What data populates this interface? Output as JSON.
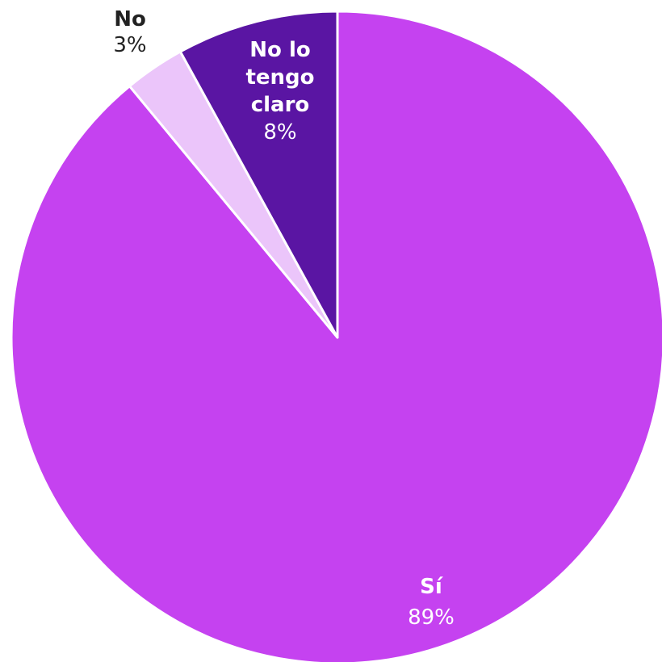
{
  "chart_data": {
    "type": "pie",
    "title": "",
    "slices": [
      {
        "label": "Sí",
        "value": 89,
        "value_label": "89%",
        "color": "#c542f0",
        "text_color": "#ffffff"
      },
      {
        "label": "No",
        "value": 3,
        "value_label": "3%",
        "color": "#ebc5fa",
        "text_color": "#222222"
      },
      {
        "label": "No lo tengo claro",
        "value": 8,
        "value_label": "8%",
        "color": "#5a15a3",
        "text_color": "#ffffff"
      }
    ]
  }
}
